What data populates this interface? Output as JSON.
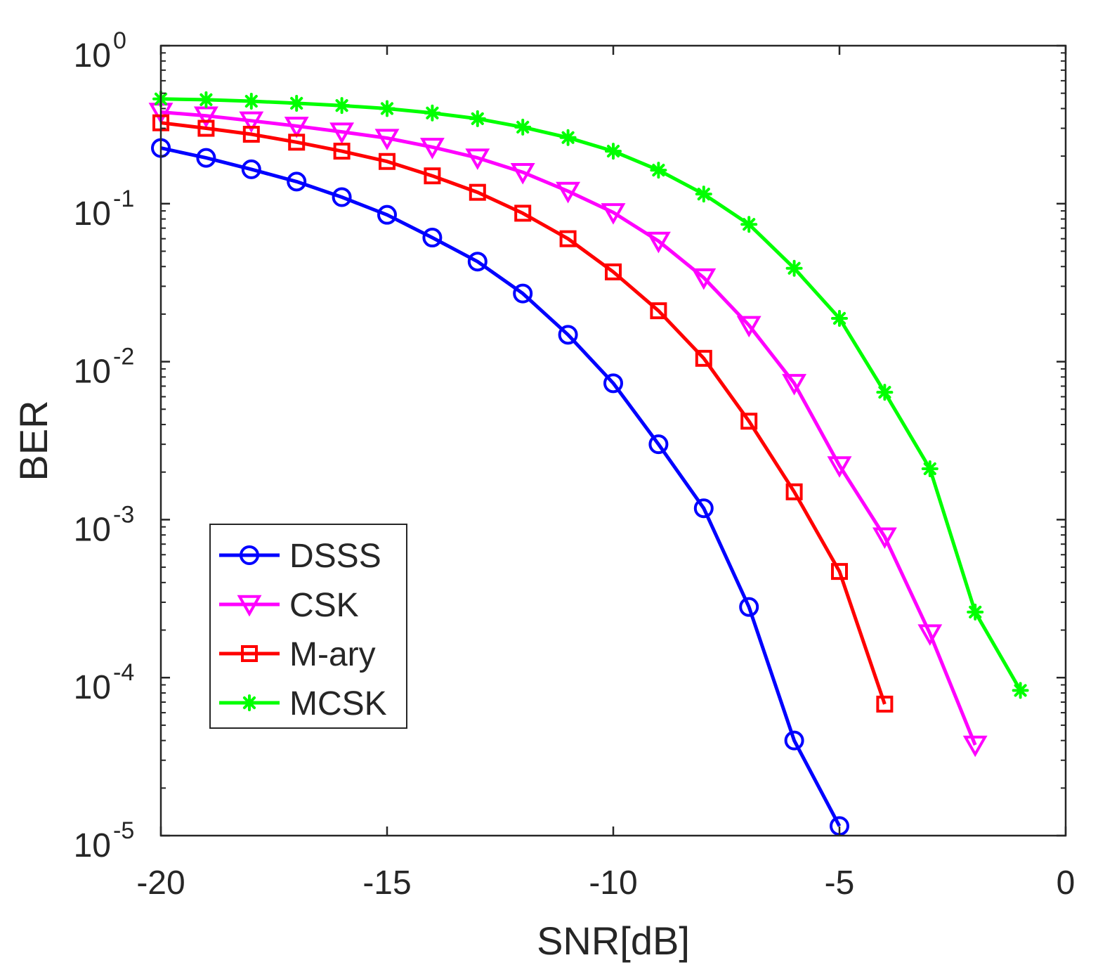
{
  "chart_data": {
    "type": "line",
    "title": "",
    "xlabel": "SNR[dB]",
    "ylabel": "BER",
    "xscale": "linear",
    "yscale": "log",
    "xlim": [
      -20,
      0
    ],
    "ylim": [
      1e-05,
      1
    ],
    "xticks": [
      -20,
      -15,
      -10,
      -5,
      0
    ],
    "xtick_labels": [
      "-20",
      "-15",
      "-10",
      "-5",
      "0"
    ],
    "yticks": [
      1,
      0.1,
      0.01,
      0.001,
      0.0001,
      1e-05
    ],
    "ytick_labels": [
      {
        "base": "10",
        "exp": "0"
      },
      {
        "base": "10",
        "exp": "-1"
      },
      {
        "base": "10",
        "exp": "-2"
      },
      {
        "base": "10",
        "exp": "-3"
      },
      {
        "base": "10",
        "exp": "-4"
      },
      {
        "base": "10",
        "exp": "-5"
      }
    ],
    "grid": false,
    "legend_position": "lower-left",
    "series": [
      {
        "name": "DSSS",
        "color": "#0000ff",
        "marker": "circle",
        "x": [
          -20,
          -19,
          -18,
          -17,
          -16,
          -15,
          -14,
          -13,
          -12,
          -11,
          -10,
          -9,
          -8,
          -7,
          -6,
          -5
        ],
        "values": [
          0.225,
          0.195,
          0.165,
          0.138,
          0.11,
          0.085,
          0.061,
          0.043,
          0.027,
          0.0148,
          0.0073,
          0.003,
          0.00118,
          0.00028,
          4e-05,
          1.15e-05
        ]
      },
      {
        "name": "CSK",
        "color": "#ff00ff",
        "marker": "triangle-down",
        "x": [
          -20,
          -19,
          -18,
          -17,
          -16,
          -15,
          -14,
          -13,
          -12,
          -11,
          -10,
          -9,
          -8,
          -7,
          -6,
          -5,
          -4,
          -3,
          -2
        ],
        "values": [
          0.38,
          0.36,
          0.335,
          0.31,
          0.285,
          0.26,
          0.228,
          0.195,
          0.158,
          0.12,
          0.088,
          0.058,
          0.034,
          0.017,
          0.0073,
          0.0022,
          0.00078,
          0.00019,
          3.75e-05
        ]
      },
      {
        "name": "M-ary",
        "color": "#ff0000",
        "marker": "square",
        "x": [
          -20,
          -19,
          -18,
          -17,
          -16,
          -15,
          -14,
          -13,
          -12,
          -11,
          -10,
          -9,
          -8,
          -7,
          -6,
          -5,
          -4
        ],
        "values": [
          0.325,
          0.3,
          0.275,
          0.245,
          0.215,
          0.185,
          0.15,
          0.118,
          0.087,
          0.06,
          0.037,
          0.021,
          0.0105,
          0.0042,
          0.0015,
          0.00047,
          6.8e-05
        ]
      },
      {
        "name": "MCSK",
        "color": "#00ff00",
        "marker": "asterisk",
        "x": [
          -20,
          -19,
          -18,
          -17,
          -16,
          -15,
          -14,
          -13,
          -12,
          -11,
          -10,
          -9,
          -8,
          -7,
          -6,
          -5,
          -4,
          -3,
          -2,
          -1
        ],
        "values": [
          0.46,
          0.455,
          0.445,
          0.432,
          0.418,
          0.4,
          0.375,
          0.345,
          0.305,
          0.262,
          0.215,
          0.163,
          0.115,
          0.074,
          0.039,
          0.0188,
          0.0064,
          0.0021,
          0.00026,
          8.3e-05
        ]
      }
    ]
  }
}
